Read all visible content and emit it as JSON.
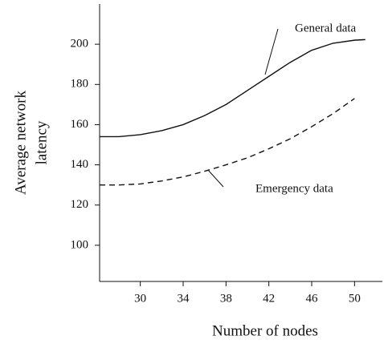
{
  "chart_data": {
    "type": "line",
    "xlabel": "Number of nodes",
    "ylabel": [
      "Average network",
      "latency"
    ],
    "x": [
      26.2,
      28,
      30,
      32,
      34,
      36,
      38,
      40,
      42,
      44,
      46,
      48,
      50,
      51
    ],
    "series": [
      {
        "name": "General data",
        "color": "#111111",
        "style": "solid",
        "values": [
          154,
          154,
          155,
          157,
          160,
          164.5,
          170,
          177,
          184,
          191,
          197,
          200.5,
          202,
          202.3
        ]
      },
      {
        "name": "Emergency data",
        "color": "#111111",
        "style": "dashed",
        "values": [
          130,
          130,
          130.5,
          132,
          134,
          136.8,
          140,
          143.5,
          148,
          153,
          159,
          165.5,
          173,
          null
        ]
      }
    ],
    "xlim": [
      26.2,
      52.6
    ],
    "ylim": [
      82,
      220
    ],
    "xticks": [
      30,
      34,
      38,
      42,
      46,
      50
    ],
    "yticks": [
      100,
      120,
      140,
      160,
      180,
      200
    ],
    "grid": false
  }
}
